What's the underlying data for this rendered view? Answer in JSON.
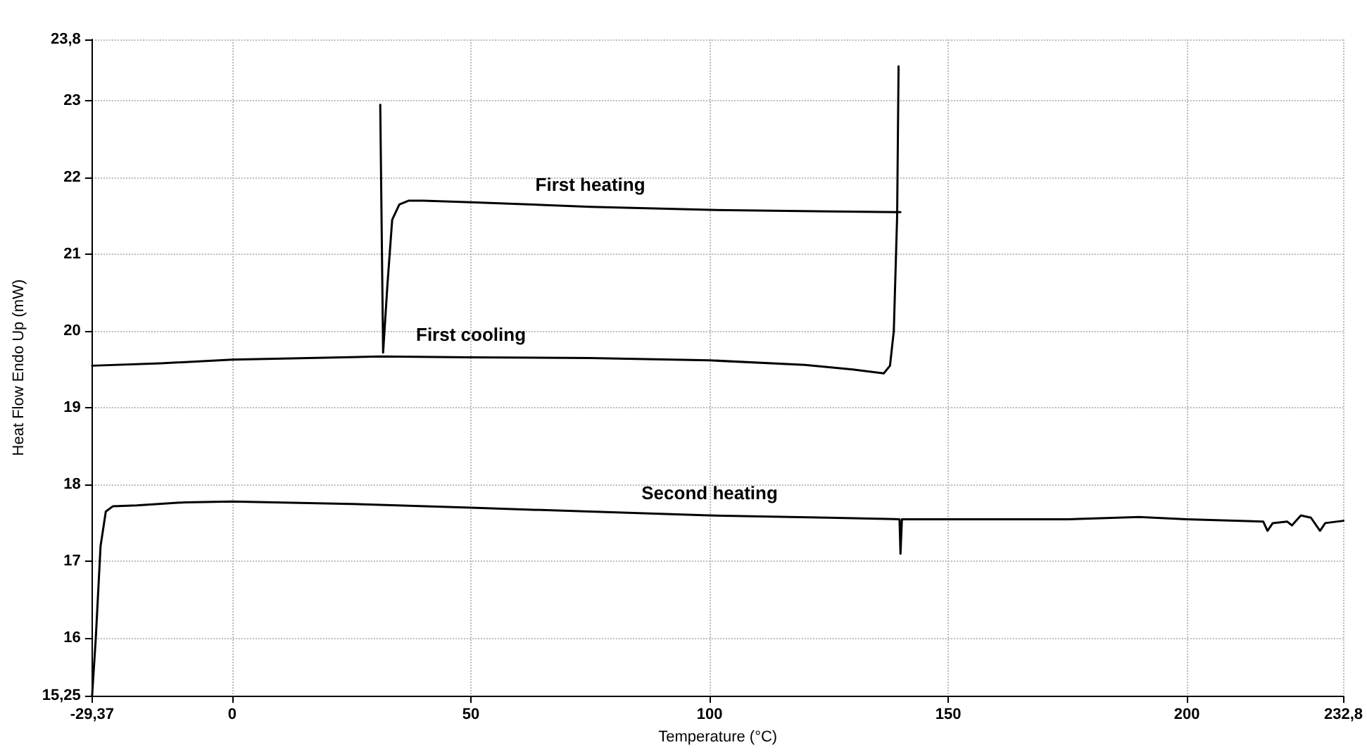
{
  "chart_data": {
    "type": "line",
    "xlabel": "Temperature (°C)",
    "ylabel": "Heat Flow Endo Up (mW)",
    "xlim": [
      -29.37,
      232.8
    ],
    "ylim": [
      15.25,
      23.8
    ],
    "xticks": [
      {
        "value": -29.37,
        "label": "-29,37"
      },
      0,
      50,
      100,
      150,
      200,
      {
        "value": 232.8,
        "label": "232,8"
      }
    ],
    "yticks": [
      {
        "value": 15.25,
        "label": "15,25"
      },
      16,
      17,
      18,
      19,
      20,
      21,
      22,
      23,
      {
        "value": 23.8,
        "label": "23,8"
      }
    ],
    "grid": true,
    "marker": "none",
    "line_style": "solid",
    "series": [
      {
        "name": "First heating",
        "color": "#000000",
        "x": [
          31,
          31.6,
          32.5,
          33.5,
          35,
          37,
          40,
          50,
          75,
          100,
          125,
          140
        ],
        "values": [
          22.95,
          19.72,
          20.6,
          21.45,
          21.65,
          21.7,
          21.7,
          21.68,
          21.62,
          21.58,
          21.56,
          21.55
        ]
      },
      {
        "name": "First cooling",
        "color": "#000000",
        "x": [
          139.6,
          139.3,
          138.6,
          137.8,
          136.5,
          130,
          120,
          100,
          75,
          50,
          31,
          0,
          -15,
          -29.37
        ],
        "values": [
          23.45,
          21.5,
          20.0,
          19.55,
          19.45,
          19.5,
          19.56,
          19.62,
          19.65,
          19.66,
          19.67,
          19.63,
          19.58,
          19.55
        ]
      },
      {
        "name": "Second heating",
        "color": "#000000",
        "x": [
          -29.37,
          -28.6,
          -27.6,
          -26.5,
          -25,
          -20,
          -10,
          0,
          25,
          50,
          75,
          100,
          125,
          139.8,
          140,
          140.3,
          175,
          190,
          200,
          210,
          216,
          216.9,
          218,
          221,
          222,
          223.9,
          226,
          227.9,
          229,
          232.8
        ],
        "values": [
          15.25,
          16.0,
          17.2,
          17.65,
          17.72,
          17.73,
          17.77,
          17.78,
          17.75,
          17.7,
          17.65,
          17.6,
          17.57,
          17.55,
          17.1,
          17.55,
          17.55,
          17.58,
          17.55,
          17.53,
          17.52,
          17.4,
          17.5,
          17.52,
          17.47,
          17.6,
          17.57,
          17.4,
          17.5,
          17.53
        ]
      }
    ]
  }
}
